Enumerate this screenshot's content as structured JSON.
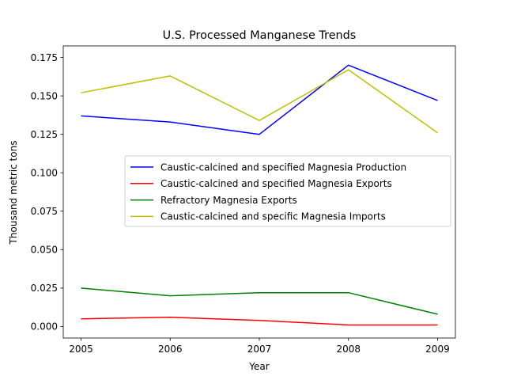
{
  "chart_data": {
    "type": "line",
    "title": "U.S. Processed Manganese Trends",
    "xlabel": "Year",
    "ylabel": "Thousand metric tons",
    "x": [
      "2005",
      "2006",
      "2007",
      "2008",
      "2009"
    ],
    "xlim": [
      2004.8,
      2009.2
    ],
    "ylim": [
      -0.0075,
      0.1825
    ],
    "yticks": [
      "0.000",
      "0.025",
      "0.050",
      "0.075",
      "0.100",
      "0.125",
      "0.150",
      "0.175"
    ],
    "grid": false,
    "legend_position": "center-right",
    "series": [
      {
        "name": "Caustic-calcined and specified Magnesia Production",
        "color": "#0000ff",
        "values": [
          0.137,
          0.133,
          0.125,
          0.17,
          0.147
        ]
      },
      {
        "name": "Caustic-calcined and specified Magnesia Exports",
        "color": "#ff0000",
        "values": [
          0.005,
          0.006,
          0.004,
          0.001,
          0.001
        ]
      },
      {
        "name": "Refractory Magnesia Exports",
        "color": "#008000",
        "values": [
          0.025,
          0.02,
          0.022,
          0.022,
          0.008
        ]
      },
      {
        "name": "Caustic-calcined and specific Magnesia Imports",
        "color": "#bfbf00",
        "values": [
          0.152,
          0.163,
          0.134,
          0.167,
          0.126
        ]
      }
    ]
  }
}
